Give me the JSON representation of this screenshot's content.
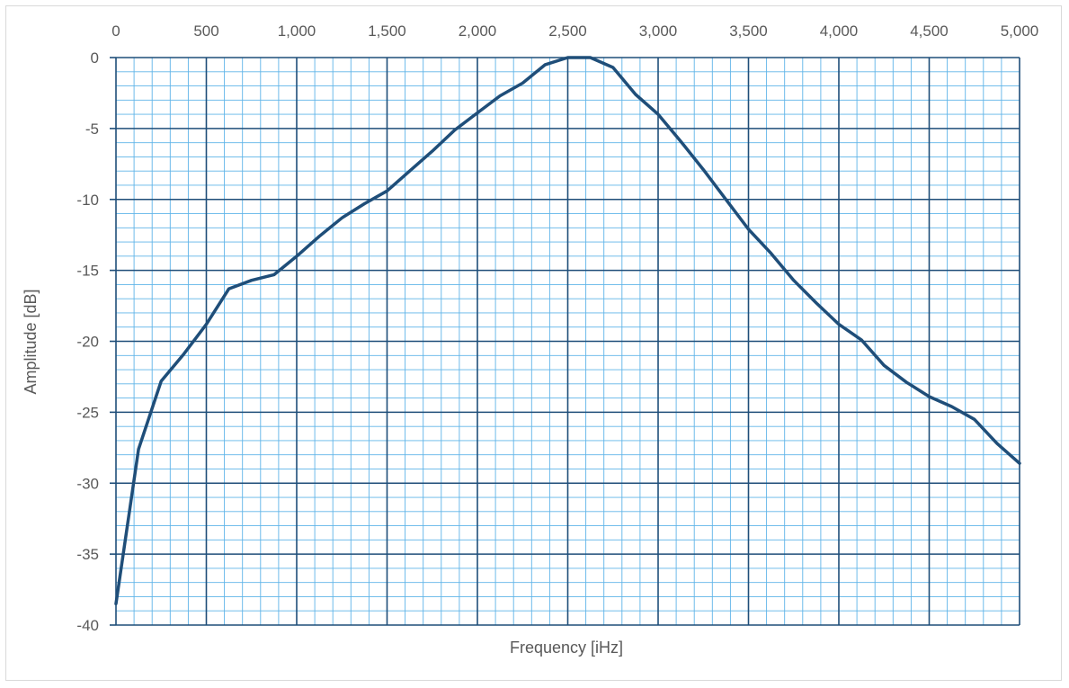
{
  "chart_data": {
    "type": "line",
    "title": "",
    "xlabel": "Frequency [iHz]",
    "ylabel": "Amplitude [dB]",
    "xlim": [
      0,
      5000
    ],
    "ylim": [
      -40,
      0
    ],
    "x_axis_position": "top",
    "grid": true,
    "minor_grid": true,
    "x_ticks": [
      0,
      500,
      1000,
      1500,
      2000,
      2500,
      3000,
      3500,
      4000,
      4500,
      5000
    ],
    "x_tick_labels": [
      "0",
      "500",
      "1,000",
      "1,500",
      "2,000",
      "2,500",
      "3,000",
      "3,500",
      "4,000",
      "4,500",
      "5,000"
    ],
    "y_ticks": [
      0,
      -5,
      -10,
      -15,
      -20,
      -25,
      -30,
      -35,
      -40
    ],
    "y_tick_labels": [
      "0",
      "-5",
      "-10",
      "-15",
      "-20",
      "-25",
      "-30",
      "-35",
      "-40"
    ],
    "colors": {
      "line": "#1f4e79",
      "major_grid": "#1f4e79",
      "minor_grid": "#5fb4e8",
      "text": "#595959"
    },
    "series": [
      {
        "x": [
          0,
          125,
          250,
          375,
          500,
          625,
          750,
          875,
          1000,
          1125,
          1250,
          1375,
          1500,
          1625,
          1750,
          1875,
          2000,
          2125,
          2250,
          2375,
          2500,
          2625,
          2750,
          2875,
          3000,
          3125,
          3250,
          3375,
          3500,
          3625,
          3750,
          3875,
          4000,
          4125,
          4250,
          4375,
          4500,
          4625,
          4750,
          4875,
          5000
        ],
        "values": [
          -38.5,
          -27.6,
          -22.8,
          -20.9,
          -18.8,
          -16.3,
          -15.7,
          -15.3,
          -14.0,
          -12.6,
          -11.3,
          -10.3,
          -9.4,
          -8.0,
          -6.6,
          -5.1,
          -3.9,
          -2.7,
          -1.8,
          -0.5,
          0.0,
          0.0,
          -0.7,
          -2.6,
          -4.0,
          -5.9,
          -7.9,
          -10.0,
          -12.1,
          -13.8,
          -15.7,
          -17.3,
          -18.8,
          -19.9,
          -21.7,
          -22.9,
          -23.9,
          -24.6,
          -25.5,
          -27.2,
          -28.6
        ]
      }
    ]
  }
}
